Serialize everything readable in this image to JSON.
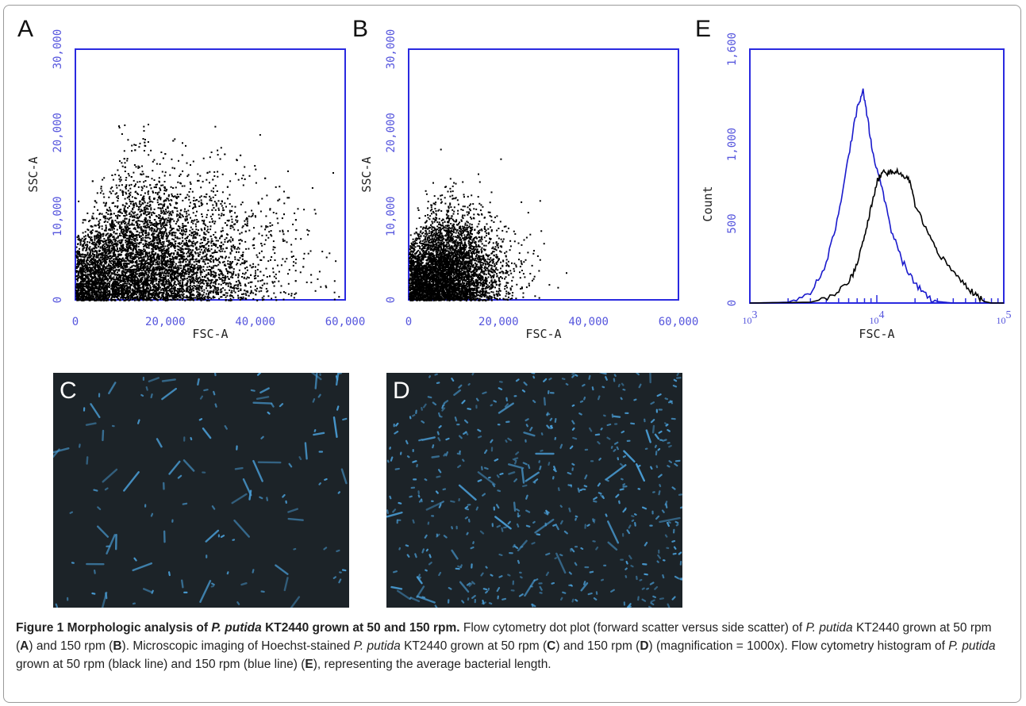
{
  "panels": {
    "A": {
      "letter": "A"
    },
    "B": {
      "letter": "B"
    },
    "C": {
      "letter": "C"
    },
    "D": {
      "letter": "D"
    },
    "E": {
      "letter": "E"
    }
  },
  "chart_data": [
    {
      "panel": "A",
      "type": "scatter",
      "xlabel": "FSC-A",
      "ylabel": "SSC-A",
      "xlim": [
        0,
        60000
      ],
      "ylim": [
        0,
        30000
      ],
      "xticks": [
        "0",
        "20,000",
        "40,000",
        "60,000"
      ],
      "yticks": [
        "0",
        "10,000",
        "20,000",
        "30,000"
      ],
      "distribution": {
        "n": 7000,
        "x_mode": 14000,
        "x_spread": 13000,
        "y_mode": 3500,
        "y_spread": 6000,
        "note": "dense cloud near origin extending to upper right"
      }
    },
    {
      "panel": "B",
      "type": "scatter",
      "xlabel": "FSC-A",
      "ylabel": "SSC-A",
      "xlim": [
        0,
        60000
      ],
      "ylim": [
        0,
        30000
      ],
      "xticks": [
        "0",
        "20,000",
        "40,000",
        "60,000"
      ],
      "yticks": [
        "0",
        "10,000",
        "20,000",
        "30,000"
      ],
      "distribution": {
        "n": 5000,
        "x_mode": 8000,
        "x_spread": 6000,
        "y_mode": 4000,
        "y_spread": 3500,
        "note": "compact cloud near origin with sparse outliers"
      }
    },
    {
      "panel": "E",
      "type": "line",
      "xlabel": "FSC-A",
      "ylabel": "Count",
      "xscale": "log",
      "xlim": [
        1000,
        100000
      ],
      "ylim": [
        0,
        1600
      ],
      "yticks": [
        "0",
        "500",
        "1,000",
        "1,600"
      ],
      "xtick_bases": [
        "10",
        "10",
        "10"
      ],
      "xtick_exps": [
        "3",
        "4",
        "5"
      ],
      "series": [
        {
          "color": "#1a1acc",
          "points": [
            [
              1000,
              0
            ],
            [
              2000,
              5
            ],
            [
              3000,
              60
            ],
            [
              4000,
              250
            ],
            [
              5000,
              560
            ],
            [
              6000,
              930
            ],
            [
              7000,
              1230
            ],
            [
              7800,
              1340
            ],
            [
              8500,
              1150
            ],
            [
              9500,
              900
            ],
            [
              11000,
              720
            ],
            [
              13000,
              460
            ],
            [
              16000,
              260
            ],
            [
              20000,
              120
            ],
            [
              25000,
              40
            ],
            [
              30000,
              10
            ],
            [
              40000,
              0
            ],
            [
              100000,
              0
            ]
          ]
        },
        {
          "color": "#000000",
          "points": [
            [
              1000,
              0
            ],
            [
              3000,
              5
            ],
            [
              4500,
              40
            ],
            [
              6000,
              130
            ],
            [
              7000,
              240
            ],
            [
              8000,
              420
            ],
            [
              9000,
              600
            ],
            [
              10000,
              760
            ],
            [
              11000,
              830
            ],
            [
              12500,
              820
            ],
            [
              14000,
              830
            ],
            [
              16000,
              800
            ],
            [
              18000,
              780
            ],
            [
              20000,
              620
            ],
            [
              25000,
              440
            ],
            [
              30000,
              320
            ],
            [
              40000,
              200
            ],
            [
              50000,
              110
            ],
            [
              60000,
              50
            ],
            [
              70000,
              10
            ],
            [
              80000,
              0
            ],
            [
              100000,
              0
            ]
          ]
        }
      ]
    }
  ],
  "caption": {
    "title_a": "Figure 1 Morphologic analysis of ",
    "title_b": "P. putida",
    "title_c": " KT2440 grown at 50 and 150 rpm.",
    "t1": " Flow cytometry dot plot (forward scatter versus side scatter) of ",
    "t2": "P. putida",
    "t3": " KT2440 grown at 50 rpm (",
    "t4": "A",
    "t5": ") and 150 rpm (",
    "t6": "B",
    "t7": "). Microscopic imaging of Hoechst-stained ",
    "t8": "P. putida",
    "t9": " KT2440 grown at 50 rpm (",
    "t10": "C",
    "t11": ") and 150 rpm (",
    "t12": "D",
    "t13": ") (magnification = 1000x). Flow cytometry histogram of ",
    "t14": "P. putida",
    "t15": " grown at 50 rpm (black line) and 150 rpm (blue line) (",
    "t16": "E",
    "t17": "), representing the average bacterial length."
  },
  "colors": {
    "axis": "#2a2ae0",
    "tick_text": "#5555dd",
    "micro_bg": "#1c2328",
    "cell": "#4a9fd8"
  }
}
